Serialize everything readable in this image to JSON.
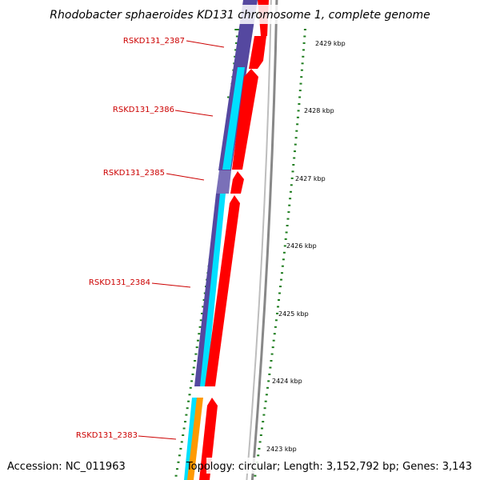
{
  "title": "Rhodobacter sphaeroides KD131 chromosome 1, complete genome",
  "footer": {
    "accession": "Accession: NC_011963",
    "topology": "Topology: circular; Length: 3,152,792 bp; Genes: 3,143"
  },
  "colors": {
    "label_red": "#cc0000",
    "cds_red": "#ff0000",
    "purple": "#5548a0",
    "cyan": "#00e0ff",
    "orange": "#ff9900",
    "tick_green": "#1e7d1e",
    "backbone_gray": "#888888"
  },
  "ruler": {
    "labels": [
      "2429 kbp",
      "2428 kbp",
      "2427 kbp",
      "2426 kbp",
      "2425 kbp",
      "2424 kbp",
      "2423 kbp"
    ]
  },
  "genes": [
    {
      "label": "RSKD131_2387"
    },
    {
      "label": "RSKD131_2386"
    },
    {
      "label": "RSKD131_2385"
    },
    {
      "label": "RSKD131_2384"
    },
    {
      "label": "RSKD131_2383"
    }
  ]
}
